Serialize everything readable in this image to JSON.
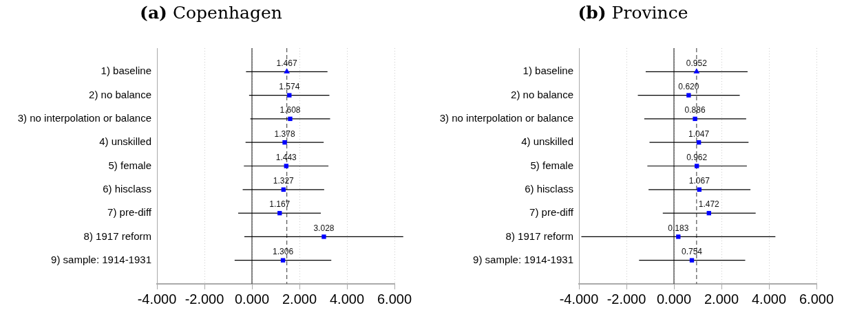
{
  "chart_data": [
    {
      "type": "scatter",
      "title": "(a) Copenhagen",
      "orientation": "horizontal",
      "categories": [
        "1) baseline",
        "2) no balance",
        "3) no interpolation or balance",
        "4) unskilled",
        "5) female",
        "6) hisclass",
        "7) pre-diff",
        "8) 1917 reform",
        "9) sample: 1914-1931"
      ],
      "series": [
        {
          "color": "#0000ff",
          "marker": "triangle",
          "values": [
            1.467,
            null,
            null,
            null,
            null,
            null,
            null,
            null,
            null
          ],
          "value_labels": [
            "1.467",
            null,
            null,
            null,
            null,
            null,
            null,
            null,
            null
          ],
          "errors": [
            [
              -0.25,
              3.18
            ],
            null,
            null,
            null,
            null,
            null,
            null,
            null,
            null
          ]
        },
        {
          "color": "#0000ff",
          "marker": "square",
          "values": [
            null,
            1.574,
            1.608,
            1.378,
            1.443,
            1.327,
            1.167,
            3.028,
            1.306
          ],
          "value_labels": [
            null,
            "1.574",
            "1.608",
            "1.378",
            "1.443",
            "1.327",
            "1.167",
            "3.028",
            "1.306"
          ],
          "errors": [
            null,
            [
              -0.12,
              3.26
            ],
            [
              -0.07,
              3.29
            ],
            [
              -0.27,
              3.02
            ],
            [
              -0.34,
              3.22
            ],
            [
              -0.39,
              3.04
            ],
            [
              -0.58,
              2.9
            ],
            [
              -0.32,
              6.37
            ],
            [
              -0.73,
              3.34
            ]
          ]
        }
      ],
      "xlim": [
        -4,
        6
      ],
      "xticks": [
        {
          "value": -4,
          "label": "-4.000"
        },
        {
          "value": -2,
          "label": "-2.000"
        },
        {
          "value": 0,
          "label": "0.000"
        },
        {
          "value": 2,
          "label": "2.000"
        },
        {
          "value": 4,
          "label": "4.000"
        },
        {
          "value": 6,
          "label": "6.000"
        }
      ],
      "grid": "x",
      "ref_lines": [
        {
          "axis": "x",
          "value": 0,
          "color": "#333333",
          "line_style": "solid"
        },
        {
          "axis": "x",
          "value": 1.467,
          "color": "#555555",
          "line_style": "dashed"
        }
      ]
    },
    {
      "type": "scatter",
      "title": "(b) Province",
      "orientation": "horizontal",
      "categories": [
        "1) baseline",
        "2) no balance",
        "3) no interpolation or balance",
        "4) unskilled",
        "5) female",
        "6) hisclass",
        "7) pre-diff",
        "8) 1917 reform",
        "9) sample: 1914-1931"
      ],
      "series": [
        {
          "color": "#0000ff",
          "marker": "triangle",
          "values": [
            0.952,
            null,
            null,
            null,
            null,
            null,
            null,
            null,
            null
          ],
          "value_labels": [
            "0.952",
            null,
            null,
            null,
            null,
            null,
            null,
            null,
            null
          ],
          "errors": [
            [
              -1.19,
              3.1
            ],
            null,
            null,
            null,
            null,
            null,
            null,
            null,
            null
          ]
        },
        {
          "color": "#0000ff",
          "marker": "square",
          "values": [
            null,
            0.62,
            0.886,
            1.047,
            0.962,
            1.067,
            1.472,
            0.183,
            0.754
          ],
          "value_labels": [
            null,
            "0.620",
            "0.886",
            "1.047",
            "0.962",
            "1.067",
            "1.472",
            "0.183",
            "0.754"
          ],
          "errors": [
            null,
            [
              -1.52,
              2.77
            ],
            [
              -1.25,
              3.04
            ],
            [
              -1.03,
              3.14
            ],
            [
              -1.12,
              3.07
            ],
            [
              -1.07,
              3.22
            ],
            [
              -0.47,
              3.44
            ],
            [
              -3.9,
              4.27
            ],
            [
              -1.47,
              3.0
            ]
          ]
        }
      ],
      "xlim": [
        -4,
        6
      ],
      "xticks": [
        {
          "value": -4,
          "label": "-4.000"
        },
        {
          "value": -2,
          "label": "-2.000"
        },
        {
          "value": 0,
          "label": "0.000"
        },
        {
          "value": 2,
          "label": "2.000"
        },
        {
          "value": 4,
          "label": "4.000"
        },
        {
          "value": 6,
          "label": "6.000"
        }
      ],
      "grid": "x",
      "ref_lines": [
        {
          "axis": "x",
          "value": 0,
          "color": "#333333",
          "line_style": "solid"
        },
        {
          "axis": "x",
          "value": 0.952,
          "color": "#555555",
          "line_style": "dashed"
        }
      ]
    }
  ]
}
